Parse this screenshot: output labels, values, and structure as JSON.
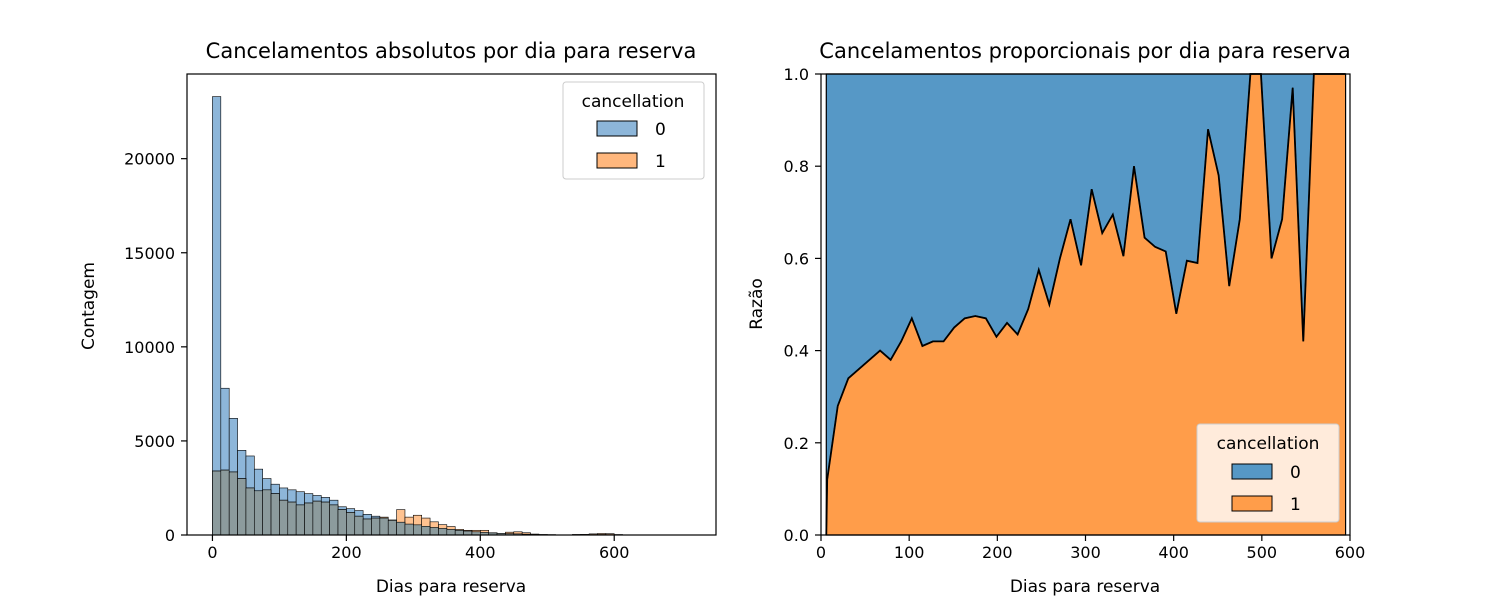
{
  "chart_data": [
    {
      "type": "histogram",
      "title": "Cancelamentos absolutos por dia para reserva",
      "xlabel": "Dias para reserva",
      "ylabel": "Contagem",
      "xlim": [
        -38,
        752
      ],
      "ylim": [
        0,
        24500
      ],
      "xticks": [
        0,
        200,
        400,
        600
      ],
      "yticks": [
        0,
        5000,
        10000,
        15000,
        20000
      ],
      "bin_width": 12.5,
      "legend": {
        "title": "cancellation",
        "position": "top-right"
      },
      "series": [
        {
          "name": "0",
          "color": "#1f77b4",
          "bin_starts": [
            0,
            12.5,
            25,
            37.5,
            50,
            62.5,
            75,
            87.5,
            100,
            112.5,
            125,
            137.5,
            150,
            162.5,
            175,
            187.5,
            200,
            212.5,
            225,
            237.5,
            250,
            262.5,
            275,
            287.5,
            300,
            312.5,
            325,
            337.5,
            350,
            362.5,
            375,
            387.5,
            400,
            412.5,
            425,
            437.5,
            450,
            462.5,
            475,
            487.5,
            500,
            512.5,
            525,
            537.5,
            550,
            562.5,
            575,
            587.5,
            600,
            612.5,
            625,
            637.5,
            650,
            662.5,
            675,
            687.5,
            700,
            712.5,
            725,
            737.5
          ],
          "values": [
            23300,
            7800,
            6200,
            4500,
            4200,
            3500,
            3000,
            2700,
            2500,
            2400,
            2300,
            2200,
            2100,
            2000,
            1850,
            1500,
            1400,
            1300,
            1100,
            1000,
            900,
            780,
            680,
            580,
            540,
            460,
            400,
            350,
            300,
            250,
            210,
            170,
            140,
            110,
            90,
            70,
            60,
            45,
            30,
            20,
            15,
            10,
            6,
            5,
            20,
            20,
            25,
            20,
            15,
            10,
            10,
            5,
            5,
            3,
            3,
            2,
            2,
            1,
            1,
            1
          ]
        },
        {
          "name": "1",
          "color": "#ff7f0e",
          "bin_starts": [
            0,
            12.5,
            25,
            37.5,
            50,
            62.5,
            75,
            87.5,
            100,
            112.5,
            125,
            137.5,
            150,
            162.5,
            175,
            187.5,
            200,
            212.5,
            225,
            237.5,
            250,
            262.5,
            275,
            287.5,
            300,
            312.5,
            325,
            337.5,
            350,
            362.5,
            375,
            387.5,
            400,
            412.5,
            425,
            437.5,
            450,
            462.5,
            475,
            487.5,
            500,
            512.5,
            525,
            537.5,
            550,
            562.5,
            575,
            587.5,
            600,
            612.5,
            625,
            637.5,
            650,
            662.5,
            675,
            687.5,
            700,
            712.5,
            725,
            737.5
          ],
          "values": [
            3400,
            3450,
            3350,
            3000,
            2500,
            2350,
            2400,
            2200,
            1850,
            1750,
            1600,
            1700,
            1800,
            1750,
            1600,
            1350,
            1200,
            1000,
            850,
            900,
            950,
            800,
            1350,
            950,
            1050,
            900,
            700,
            550,
            450,
            300,
            250,
            250,
            250,
            120,
            90,
            150,
            170,
            120,
            50,
            20,
            15,
            10,
            5,
            30,
            30,
            60,
            80,
            70,
            20,
            10,
            5,
            2,
            2,
            1,
            1,
            1,
            0,
            0,
            0,
            0
          ]
        }
      ]
    },
    {
      "type": "area",
      "title": "Cancelamentos proporcionais por dia para reserva",
      "xlabel": "Dias para reserva",
      "ylabel": "Razão",
      "xlim": [
        0,
        600
      ],
      "ylim": [
        0,
        1
      ],
      "xticks": [
        0,
        100,
        200,
        300,
        400,
        500,
        600
      ],
      "yticks": [
        0.0,
        0.2,
        0.4,
        0.6,
        0.8,
        1.0
      ],
      "stacked": true,
      "legend": {
        "title": "cancellation",
        "position": "bottom-right"
      },
      "x": [
        6,
        7,
        19,
        31,
        43,
        55,
        67,
        79,
        91,
        103,
        115,
        127,
        139,
        151,
        163,
        175,
        187,
        199,
        211,
        223,
        235,
        247,
        259,
        271,
        283,
        295,
        307,
        319,
        331,
        343,
        355,
        367,
        379,
        391,
        403,
        415,
        427,
        439,
        451,
        463,
        475,
        487,
        499,
        511,
        523,
        535,
        547,
        559,
        571,
        583,
        595
      ],
      "series": [
        {
          "name": "1",
          "color": "#ff9d4a",
          "values": [
            0.0,
            0.12,
            0.28,
            0.34,
            0.36,
            0.38,
            0.4,
            0.38,
            0.42,
            0.47,
            0.41,
            0.42,
            0.42,
            0.45,
            0.47,
            0.475,
            0.47,
            0.43,
            0.46,
            0.435,
            0.49,
            0.575,
            0.5,
            0.6,
            0.685,
            0.585,
            0.75,
            0.655,
            0.695,
            0.605,
            0.8,
            0.645,
            0.625,
            0.615,
            0.48,
            0.595,
            0.59,
            0.88,
            0.78,
            0.54,
            0.685,
            1.0,
            1.0,
            0.6,
            0.685,
            0.97,
            0.42,
            1.0,
            1.0,
            1.0,
            1.0
          ]
        },
        {
          "name": "0",
          "color": "#5698c6"
        }
      ]
    }
  ]
}
